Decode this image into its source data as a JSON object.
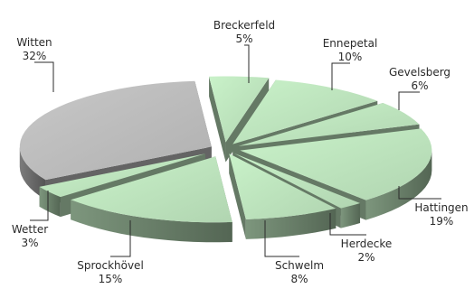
{
  "chart_data": {
    "type": "pie",
    "style": "3d-exploded",
    "title": "",
    "legend": "none",
    "slices": [
      {
        "label": "Breckerfeld",
        "value": 5,
        "pct": "5%",
        "color": "#c9f2c9"
      },
      {
        "label": "Ennepetal",
        "value": 10,
        "pct": "10%",
        "color": "#c9f2c9"
      },
      {
        "label": "Gevelsberg",
        "value": 6,
        "pct": "6%",
        "color": "#c9f2c9"
      },
      {
        "label": "Hattingen",
        "value": 19,
        "pct": "19%",
        "color": "#c9f2c9"
      },
      {
        "label": "Herdecke",
        "value": 2,
        "pct": "2%",
        "color": "#c9f2c9"
      },
      {
        "label": "Schwelm",
        "value": 8,
        "pct": "8%",
        "color": "#c9f2c9"
      },
      {
        "label": "Sprockhövel",
        "value": 15,
        "pct": "15%",
        "color": "#c9f2c9"
      },
      {
        "label": "Wetter",
        "value": 3,
        "pct": "3%",
        "color": "#c9f2c9"
      },
      {
        "label": "Witten",
        "value": 32,
        "pct": "32%",
        "color": "#c8c8c8"
      }
    ]
  }
}
